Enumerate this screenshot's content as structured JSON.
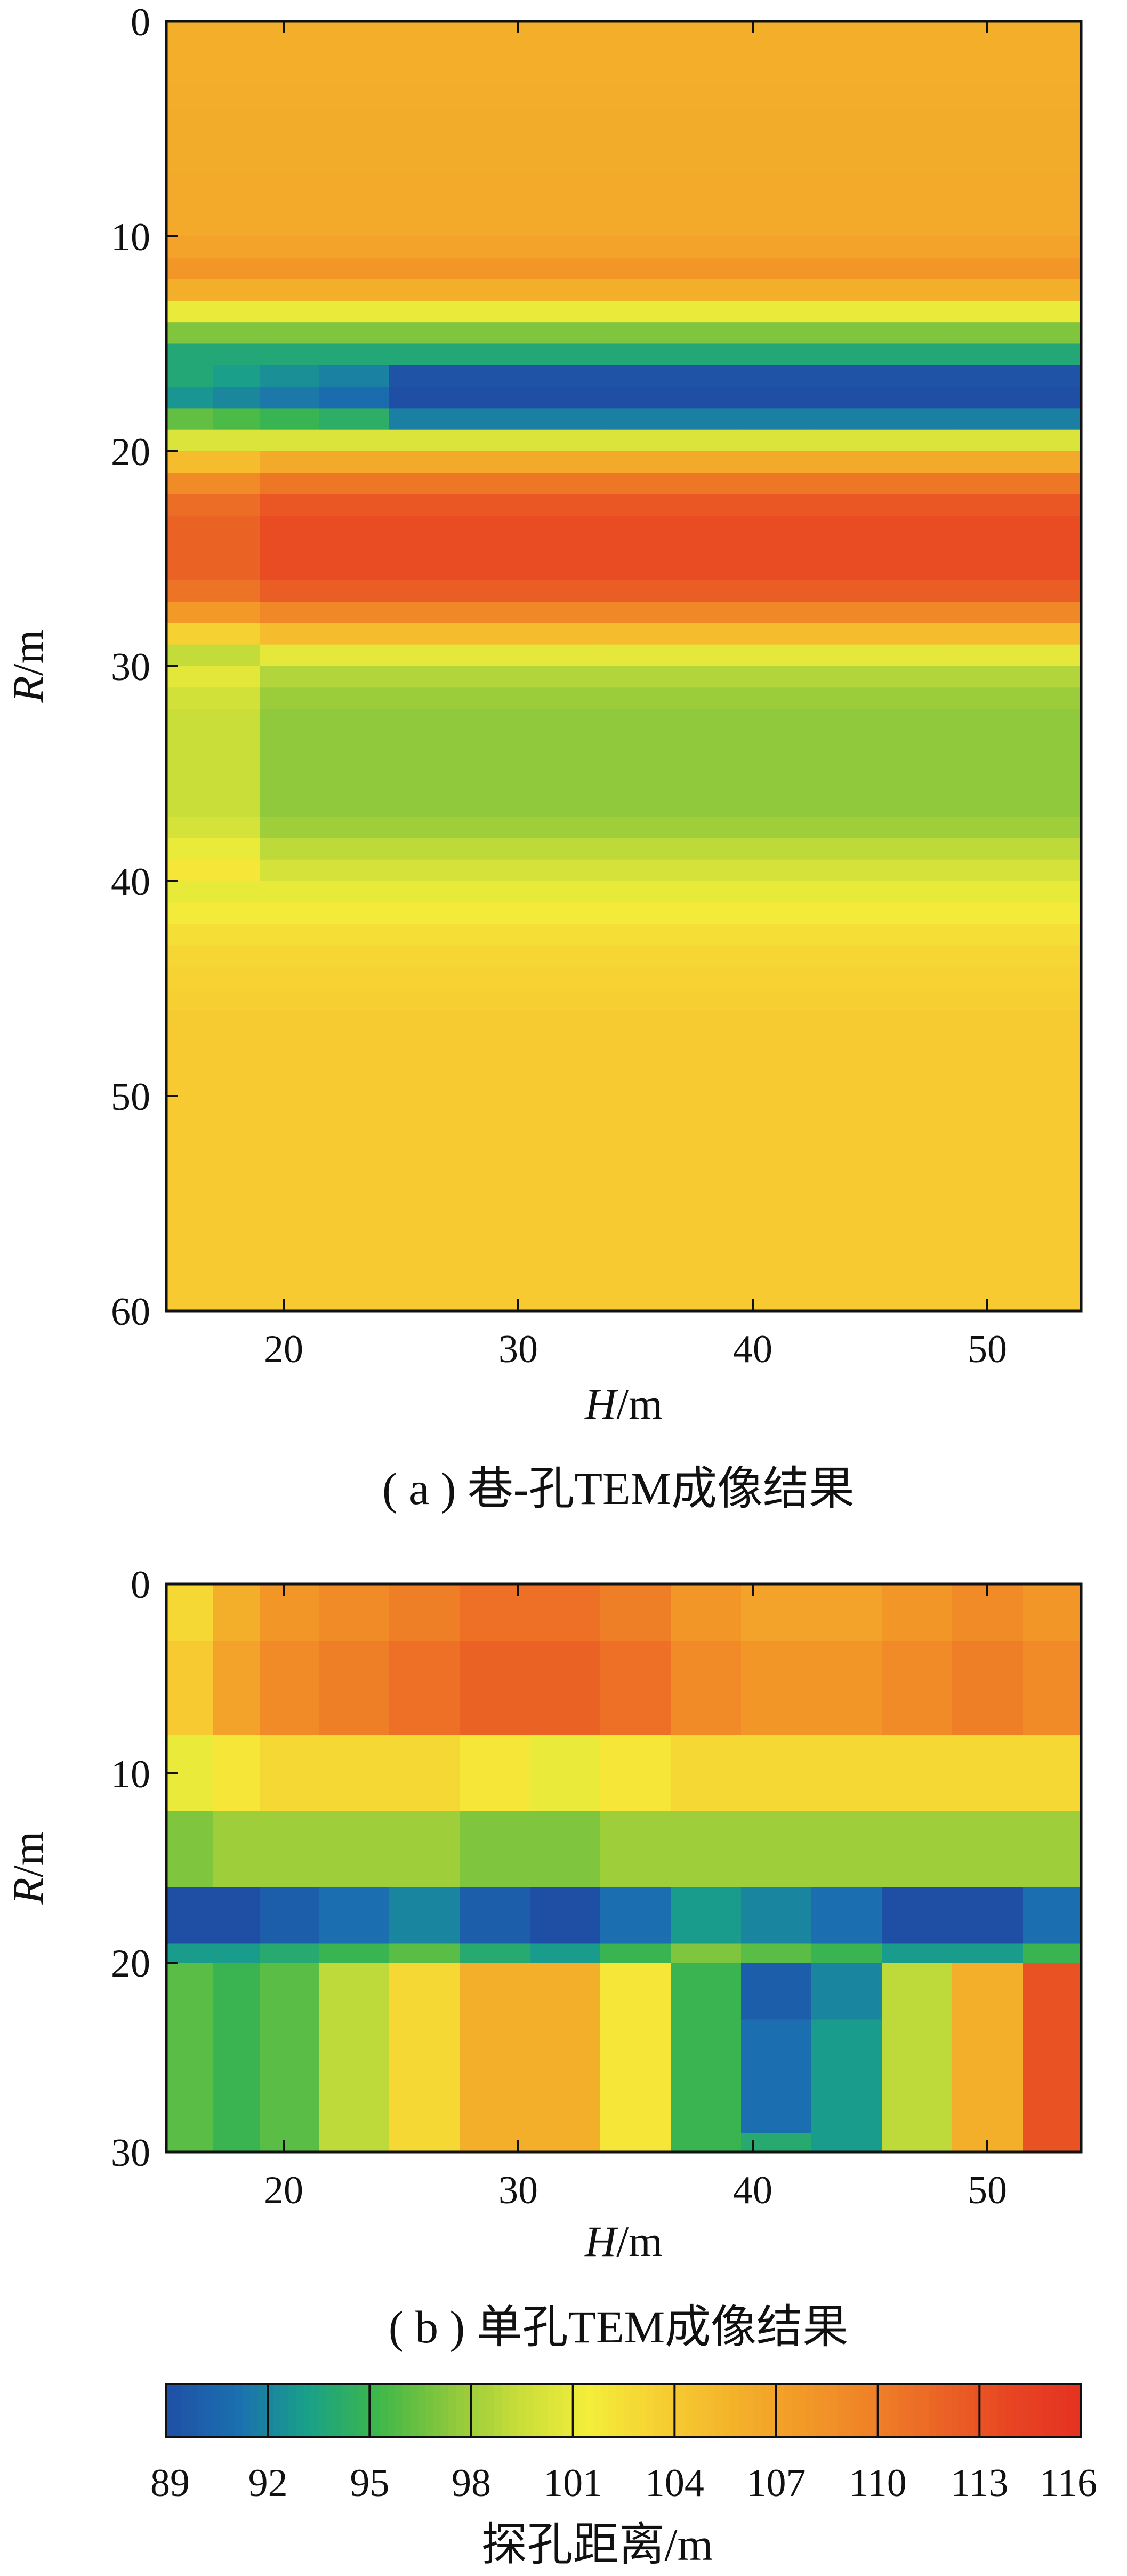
{
  "chart_data": [
    {
      "type": "heatmap",
      "title": "",
      "caption": "( a ) 巷-孔TEM成像结果",
      "xlabel_var": "H",
      "xlabel_unit": "/m",
      "ylabel_var": "R",
      "ylabel_unit": "/m",
      "xlim": [
        15,
        54
      ],
      "ylim": [
        0,
        60
      ],
      "y_inverted": true,
      "x_ticks": [
        "20",
        "30",
        "40",
        "50"
      ],
      "y_ticks": [
        "0",
        "10",
        "20",
        "30",
        "40",
        "50",
        "60"
      ],
      "x_columns": [
        16,
        18,
        20,
        23,
        26,
        29,
        32,
        35,
        38,
        41,
        44,
        47,
        50,
        53
      ],
      "row_step": 1,
      "depth_profile": [
        [
          0,
          106.0
        ],
        [
          10,
          106.5
        ],
        [
          11,
          107.5
        ],
        [
          12,
          108.5
        ],
        [
          13,
          103.5
        ],
        [
          14,
          98.5
        ],
        [
          15,
          95.5
        ],
        [
          16,
          92.0
        ],
        [
          17,
          89.5
        ],
        [
          18,
          90.0
        ],
        [
          19,
          96.5
        ],
        [
          20,
          104.0
        ],
        [
          21,
          109.0
        ],
        [
          22,
          112.0
        ],
        [
          23,
          113.5
        ],
        [
          26,
          113.5
        ],
        [
          27,
          111.0
        ],
        [
          28,
          107.5
        ],
        [
          29,
          102.5
        ],
        [
          30,
          99.0
        ],
        [
          32,
          97.5
        ],
        [
          37,
          97.5
        ],
        [
          40,
          100.5
        ],
        [
          43,
          103.0
        ],
        [
          47,
          104.0
        ],
        [
          60,
          104.0
        ]
      ],
      "grid": false
    },
    {
      "type": "heatmap",
      "title": "",
      "caption": "( b ) 单孔TEM成像结果",
      "xlabel_var": "H",
      "xlabel_unit": "/m",
      "ylabel_var": "R",
      "ylabel_unit": "/m",
      "xlim": [
        15,
        54
      ],
      "ylim": [
        0,
        30
      ],
      "y_inverted": true,
      "x_ticks": [
        "20",
        "30",
        "40",
        "50"
      ],
      "y_ticks": [
        "0",
        "10",
        "20",
        "30"
      ],
      "x_columns": [
        16,
        18,
        20,
        23,
        26,
        29,
        32,
        35,
        38,
        41,
        44,
        47,
        50,
        53
      ],
      "row_step": 1,
      "top_band": [
        104,
        107,
        109,
        110,
        111,
        112,
        112,
        111,
        109,
        108,
        108,
        109,
        110,
        109
      ],
      "upper_band": [
        101,
        102,
        103,
        103,
        103,
        102,
        101,
        102,
        103,
        103,
        103,
        103,
        103,
        103
      ],
      "mid_band": [
        97,
        98,
        98,
        98,
        98,
        97,
        97,
        98,
        98,
        98,
        98,
        98,
        98,
        98
      ],
      "anomaly_band": [
        89,
        89,
        90,
        91,
        92,
        90,
        89,
        91,
        93,
        92,
        91,
        89,
        89,
        91
      ],
      "lower_band": [
        96,
        95,
        96,
        99,
        103,
        106,
        106,
        102,
        95,
        94,
        93,
        99,
        106,
        113
      ],
      "lower_anomaly": {
        "columns": [
          9,
          10
        ],
        "rows": [
          20,
          29
        ],
        "value": 90
      },
      "grid": false
    }
  ],
  "colorbar": {
    "min": 89,
    "max": 116,
    "tick_labels": [
      "89",
      "92",
      "95",
      "98",
      "101",
      "104",
      "107",
      "110",
      "113",
      "116"
    ],
    "label": "探孔距离/m",
    "colors": [
      "#1f4fa5",
      "#1b6fb0",
      "#19a089",
      "#3db74a",
      "#8ac73c",
      "#c8dd3a",
      "#f4ee3a",
      "#f6d032",
      "#f4b42b",
      "#f29a28",
      "#ef8227",
      "#eb6425",
      "#e84523",
      "#e53221"
    ]
  }
}
